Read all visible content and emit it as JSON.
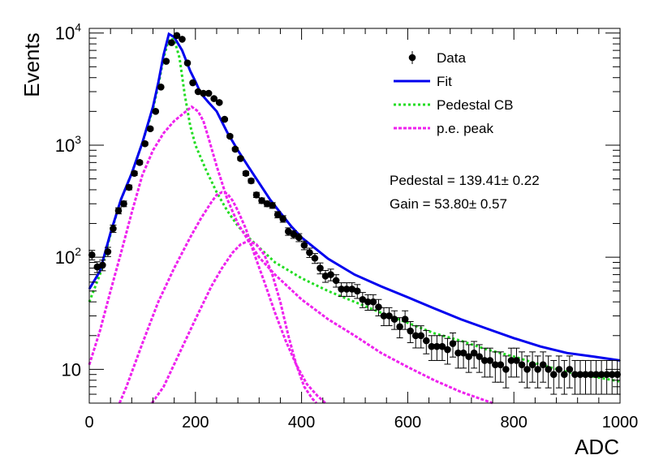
{
  "chart_data": {
    "type": "scatter",
    "xlabel": "ADC",
    "ylabel": "Events",
    "xlim": [
      0,
      1000
    ],
    "ylim": [
      5,
      11000
    ],
    "yscale": "log",
    "x_ticks": [
      "0",
      "200",
      "400",
      "600",
      "800",
      "1000"
    ],
    "y_ticks": [
      {
        "value": 10,
        "base": "10",
        "exp": ""
      },
      {
        "value": 100,
        "base": "10",
        "exp": "2"
      },
      {
        "value": 1000,
        "base": "10",
        "exp": "3"
      },
      {
        "value": 10000,
        "base": "10",
        "exp": "4"
      }
    ],
    "grid": false,
    "legend_position": "top-right",
    "legend": [
      {
        "label": "Data",
        "style": "marker",
        "color": "#000000"
      },
      {
        "label": "Fit",
        "style": "solid",
        "color": "#0000ee"
      },
      {
        "label": "Pedestal CB",
        "style": "dotted",
        "color": "#22dd22"
      },
      {
        "label": "p.e. peak",
        "style": "dashed",
        "color": "#ee22ee"
      }
    ],
    "annotations": [
      "Pedestal = 139.41± 0.22",
      "Gain = 53.80± 0.57"
    ],
    "series": [
      {
        "name": "Data",
        "points": [
          [
            5,
            105
          ],
          [
            15,
            82
          ],
          [
            25,
            85
          ],
          [
            35,
            112
          ],
          [
            45,
            180
          ],
          [
            55,
            260
          ],
          [
            65,
            300
          ],
          [
            75,
            420
          ],
          [
            85,
            560
          ],
          [
            95,
            700
          ],
          [
            105,
            1030
          ],
          [
            115,
            1400
          ],
          [
            125,
            2000
          ],
          [
            135,
            3300
          ],
          [
            145,
            5600
          ],
          [
            155,
            8200
          ],
          [
            165,
            9500
          ],
          [
            175,
            8800
          ],
          [
            185,
            5400
          ],
          [
            195,
            3600
          ],
          [
            205,
            3000
          ],
          [
            215,
            2900
          ],
          [
            225,
            2900
          ],
          [
            235,
            2600
          ],
          [
            245,
            2400
          ],
          [
            255,
            1700
          ],
          [
            265,
            1200
          ],
          [
            275,
            920
          ],
          [
            285,
            760
          ],
          [
            295,
            560
          ],
          [
            305,
            480
          ],
          [
            315,
            360
          ],
          [
            325,
            320
          ],
          [
            335,
            300
          ],
          [
            345,
            290
          ],
          [
            355,
            240
          ],
          [
            365,
            220
          ],
          [
            375,
            170
          ],
          [
            385,
            160
          ],
          [
            395,
            150
          ],
          [
            405,
            128
          ],
          [
            415,
            110
          ],
          [
            425,
            98
          ],
          [
            435,
            80
          ],
          [
            445,
            68
          ],
          [
            455,
            70
          ],
          [
            465,
            62
          ],
          [
            475,
            52
          ],
          [
            485,
            52
          ],
          [
            495,
            52
          ],
          [
            505,
            50
          ],
          [
            515,
            42
          ],
          [
            525,
            40
          ],
          [
            535,
            40
          ],
          [
            545,
            36
          ],
          [
            555,
            30
          ],
          [
            565,
            30
          ],
          [
            575,
            28
          ],
          [
            585,
            24
          ],
          [
            595,
            28
          ],
          [
            605,
            22
          ],
          [
            615,
            20
          ],
          [
            625,
            20
          ],
          [
            635,
            18
          ],
          [
            645,
            16
          ],
          [
            655,
            16
          ],
          [
            665,
            16
          ],
          [
            675,
            15
          ],
          [
            685,
            17
          ],
          [
            695,
            14
          ],
          [
            705,
            14
          ],
          [
            715,
            13
          ],
          [
            725,
            14
          ],
          [
            735,
            13
          ],
          [
            745,
            12
          ],
          [
            755,
            12
          ],
          [
            765,
            11
          ],
          [
            775,
            11
          ],
          [
            785,
            10
          ],
          [
            795,
            12
          ],
          [
            805,
            12
          ],
          [
            815,
            11
          ],
          [
            825,
            10
          ],
          [
            835,
            11
          ],
          [
            845,
            10
          ],
          [
            855,
            11
          ],
          [
            865,
            10
          ],
          [
            875,
            9
          ],
          [
            885,
            10
          ],
          [
            895,
            9
          ],
          [
            905,
            10
          ],
          [
            915,
            9
          ],
          [
            925,
            9
          ],
          [
            935,
            9
          ],
          [
            945,
            9
          ],
          [
            955,
            9
          ],
          [
            965,
            9
          ],
          [
            975,
            9
          ],
          [
            985,
            9
          ],
          [
            995,
            9
          ]
        ]
      },
      {
        "name": "Fit",
        "points": [
          [
            0,
            52
          ],
          [
            20,
            75
          ],
          [
            40,
            165
          ],
          [
            60,
            330
          ],
          [
            80,
            560
          ],
          [
            100,
            1050
          ],
          [
            120,
            2200
          ],
          [
            130,
            3600
          ],
          [
            140,
            6400
          ],
          [
            150,
            9800
          ],
          [
            160,
            9200
          ],
          [
            175,
            7000
          ],
          [
            190,
            4600
          ],
          [
            200,
            3700
          ],
          [
            210,
            2900
          ],
          [
            225,
            2400
          ],
          [
            240,
            2000
          ],
          [
            260,
            1300
          ],
          [
            280,
            900
          ],
          [
            300,
            640
          ],
          [
            320,
            460
          ],
          [
            340,
            330
          ],
          [
            360,
            250
          ],
          [
            380,
            190
          ],
          [
            400,
            150
          ],
          [
            450,
            97
          ],
          [
            500,
            70
          ],
          [
            550,
            55
          ],
          [
            600,
            44
          ],
          [
            650,
            35
          ],
          [
            700,
            28
          ],
          [
            750,
            23
          ],
          [
            800,
            19
          ],
          [
            850,
            16
          ],
          [
            900,
            14
          ],
          [
            950,
            13
          ],
          [
            1000,
            12
          ]
        ]
      },
      {
        "name": "Pedestal CB",
        "points": [
          [
            0,
            40
          ],
          [
            20,
            70
          ],
          [
            40,
            160
          ],
          [
            60,
            330
          ],
          [
            80,
            560
          ],
          [
            100,
            1050
          ],
          [
            120,
            2100
          ],
          [
            130,
            3400
          ],
          [
            140,
            6000
          ],
          [
            150,
            8800
          ],
          [
            160,
            8800
          ],
          [
            170,
            6000
          ],
          [
            180,
            2800
          ],
          [
            190,
            1500
          ],
          [
            200,
            1000
          ],
          [
            220,
            600
          ],
          [
            240,
            380
          ],
          [
            260,
            260
          ],
          [
            280,
            190
          ],
          [
            300,
            150
          ],
          [
            350,
            90
          ],
          [
            400,
            65
          ],
          [
            450,
            50
          ],
          [
            500,
            40
          ],
          [
            550,
            32
          ],
          [
            600,
            26
          ],
          [
            650,
            21
          ],
          [
            700,
            18
          ],
          [
            750,
            15
          ],
          [
            800,
            13
          ],
          [
            850,
            11
          ],
          [
            900,
            9.5
          ],
          [
            950,
            8.6
          ],
          [
            1000,
            7.8
          ]
        ]
      },
      {
        "name": "p.e. peak",
        "points": [
          [
            0,
            11
          ],
          [
            20,
            22
          ],
          [
            40,
            50
          ],
          [
            60,
            110
          ],
          [
            80,
            250
          ],
          [
            100,
            540
          ],
          [
            120,
            900
          ],
          [
            140,
            1280
          ],
          [
            160,
            1640
          ],
          [
            180,
            1960
          ],
          [
            193,
            2200
          ],
          [
            205,
            2000
          ],
          [
            215,
            1640
          ],
          [
            225,
            1150
          ],
          [
            240,
            650
          ],
          [
            260,
            330
          ],
          [
            280,
            200
          ],
          [
            300,
            140
          ],
          [
            320,
            100
          ],
          [
            350,
            70
          ],
          [
            400,
            42
          ],
          [
            450,
            28
          ],
          [
            500,
            20
          ],
          [
            550,
            14
          ],
          [
            600,
            10.5
          ],
          [
            650,
            8
          ],
          [
            700,
            6.3
          ],
          [
            760,
            5
          ]
        ]
      },
      {
        "name": "p.e. peak",
        "points": [
          [
            57,
            5
          ],
          [
            70,
            7
          ],
          [
            100,
            17
          ],
          [
            130,
            40
          ],
          [
            160,
            80
          ],
          [
            190,
            150
          ],
          [
            210,
            220
          ],
          [
            230,
            310
          ],
          [
            240,
            360
          ],
          [
            250,
            380
          ],
          [
            260,
            370
          ],
          [
            270,
            320
          ],
          [
            280,
            260
          ],
          [
            295,
            180
          ],
          [
            310,
            110
          ],
          [
            330,
            60
          ],
          [
            350,
            32
          ],
          [
            370,
            18
          ],
          [
            390,
            11
          ],
          [
            410,
            7.4
          ],
          [
            430,
            5.8
          ],
          [
            445,
            5
          ]
        ]
      },
      {
        "name": "p.e. peak",
        "points": [
          [
            118,
            5
          ],
          [
            140,
            7
          ],
          [
            170,
            14
          ],
          [
            200,
            28
          ],
          [
            230,
            55
          ],
          [
            250,
            80
          ],
          [
            270,
            110
          ],
          [
            285,
            130
          ],
          [
            300,
            140
          ],
          [
            315,
            130
          ],
          [
            330,
            105
          ],
          [
            345,
            70
          ],
          [
            360,
            40
          ],
          [
            375,
            20
          ],
          [
            390,
            11
          ],
          [
            405,
            7
          ],
          [
            420,
            5.5
          ],
          [
            428,
            5
          ]
        ]
      }
    ]
  }
}
